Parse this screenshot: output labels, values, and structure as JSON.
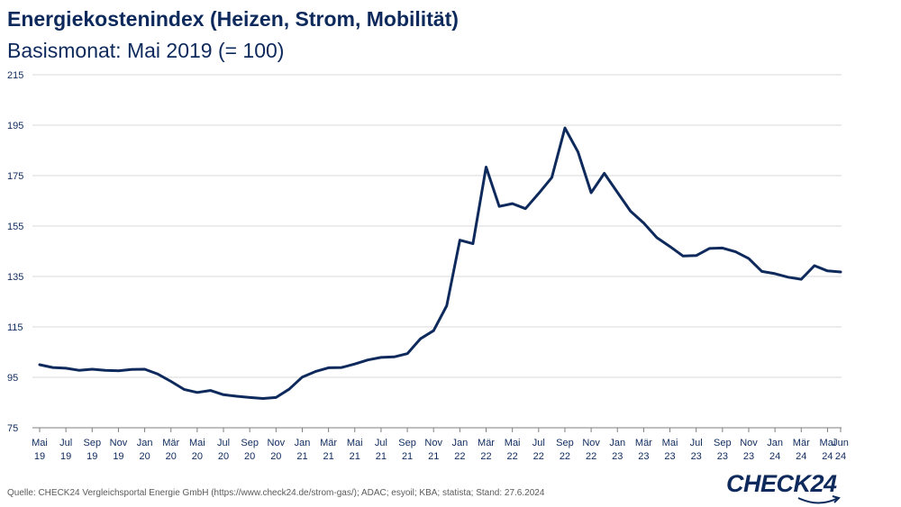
{
  "title": "Energiekostenindex (Heizen, Strom, Mobilität)",
  "subtitle": "Basismonat: Mai 2019 (= 100)",
  "source": "Quelle: CHECK24 Vergleichsportal Energie GmbH (https://www.check24.de/strom-gas/); ADAC; esyoil; KBA; statista; Stand: 27.6.2024",
  "logo_text": "CHECK24",
  "colors": {
    "line": "#0e2a5c",
    "grid": "#d9d9d9",
    "axis": "#7f7f7f",
    "text": "#0e2a5c"
  },
  "chart_data": {
    "type": "line",
    "title": "Energiekostenindex (Heizen, Strom, Mobilität)",
    "subtitle": "Basismonat: Mai 2019 (= 100)",
    "xlabel": "",
    "ylabel": "",
    "ylim": [
      75,
      215
    ],
    "yticks": [
      75,
      95,
      115,
      135,
      155,
      175,
      195,
      215
    ],
    "grid": true,
    "legend": "none",
    "x": [
      "Mai 19",
      "Jun 19",
      "Jul 19",
      "Aug 19",
      "Sep 19",
      "Okt 19",
      "Nov 19",
      "Dez 19",
      "Jan 20",
      "Feb 20",
      "Mär 20",
      "Apr 20",
      "Mai 20",
      "Jun 20",
      "Jul 20",
      "Aug 20",
      "Sep 20",
      "Okt 20",
      "Nov 20",
      "Dez 20",
      "Jan 21",
      "Feb 21",
      "Mär 21",
      "Apr 21",
      "Mai 21",
      "Jun 21",
      "Jul 21",
      "Aug 21",
      "Sep 21",
      "Okt 21",
      "Nov 21",
      "Dez 21",
      "Jan 22",
      "Feb 22",
      "Mär 22",
      "Apr 22",
      "Mai 22",
      "Jun 22",
      "Jul 22",
      "Aug 22",
      "Sep 22",
      "Okt 22",
      "Nov 22",
      "Dez 22",
      "Jan 23",
      "Feb 23",
      "Mär 23",
      "Apr 23",
      "Mai 23",
      "Jun 23",
      "Jul 23",
      "Aug 23",
      "Sep 23",
      "Okt 23",
      "Nov 23",
      "Dez 23",
      "Jan 24",
      "Feb 24",
      "Mär 24",
      "Apr 24",
      "Mai 24",
      "Jun 24"
    ],
    "x_tick_labels": [
      {
        "index": 0,
        "line1": "Mai",
        "line2": "19"
      },
      {
        "index": 2,
        "line1": "Jul",
        "line2": "19"
      },
      {
        "index": 4,
        "line1": "Sep",
        "line2": "19"
      },
      {
        "index": 6,
        "line1": "Nov",
        "line2": "19"
      },
      {
        "index": 8,
        "line1": "Jan",
        "line2": "20"
      },
      {
        "index": 10,
        "line1": "Mär",
        "line2": "20"
      },
      {
        "index": 12,
        "line1": "Mai",
        "line2": "20"
      },
      {
        "index": 14,
        "line1": "Jul",
        "line2": "20"
      },
      {
        "index": 16,
        "line1": "Sep",
        "line2": "20"
      },
      {
        "index": 18,
        "line1": "Nov",
        "line2": "20"
      },
      {
        "index": 20,
        "line1": "Jan",
        "line2": "21"
      },
      {
        "index": 22,
        "line1": "Mär",
        "line2": "21"
      },
      {
        "index": 24,
        "line1": "Mai",
        "line2": "21"
      },
      {
        "index": 26,
        "line1": "Jul",
        "line2": "21"
      },
      {
        "index": 28,
        "line1": "Sep",
        "line2": "21"
      },
      {
        "index": 30,
        "line1": "Nov",
        "line2": "21"
      },
      {
        "index": 32,
        "line1": "Jan",
        "line2": "22"
      },
      {
        "index": 34,
        "line1": "Mär",
        "line2": "22"
      },
      {
        "index": 36,
        "line1": "Mai",
        "line2": "22"
      },
      {
        "index": 38,
        "line1": "Jul",
        "line2": "22"
      },
      {
        "index": 40,
        "line1": "Sep",
        "line2": "22"
      },
      {
        "index": 42,
        "line1": "Nov",
        "line2": "22"
      },
      {
        "index": 44,
        "line1": "Jan",
        "line2": "23"
      },
      {
        "index": 46,
        "line1": "Mär",
        "line2": "23"
      },
      {
        "index": 48,
        "line1": "Mai",
        "line2": "23"
      },
      {
        "index": 50,
        "line1": "Jul",
        "line2": "23"
      },
      {
        "index": 52,
        "line1": "Sep",
        "line2": "23"
      },
      {
        "index": 54,
        "line1": "Nov",
        "line2": "23"
      },
      {
        "index": 56,
        "line1": "Jan",
        "line2": "24"
      },
      {
        "index": 58,
        "line1": "Mär",
        "line2": "24"
      },
      {
        "index": 60,
        "line1": "Mai",
        "line2": "24"
      },
      {
        "index": 61,
        "line1": "Jun",
        "line2": "24"
      }
    ],
    "series": [
      {
        "values": [
          100.0,
          98.9,
          98.6,
          97.8,
          98.2,
          97.8,
          97.6,
          98.1,
          98.2,
          96.3,
          93.4,
          90.2,
          89.0,
          89.8,
          88.1,
          87.5,
          87.0,
          86.6,
          87.0,
          90.3,
          95.1,
          97.3,
          98.8,
          98.9,
          100.3,
          101.9,
          102.9,
          103.1,
          104.4,
          110.3,
          113.5,
          123.4,
          149.4,
          148.0,
          178.4,
          162.8,
          163.9,
          161.9,
          167.9,
          174.2,
          193.9,
          184.4,
          168.2,
          175.9,
          168.4,
          160.9,
          156.2,
          150.4,
          146.9,
          143.1,
          143.3,
          146.1,
          146.3,
          144.8,
          142.1,
          137.0,
          136.1,
          134.7,
          133.9,
          139.3,
          137.2,
          136.8
        ]
      }
    ]
  }
}
